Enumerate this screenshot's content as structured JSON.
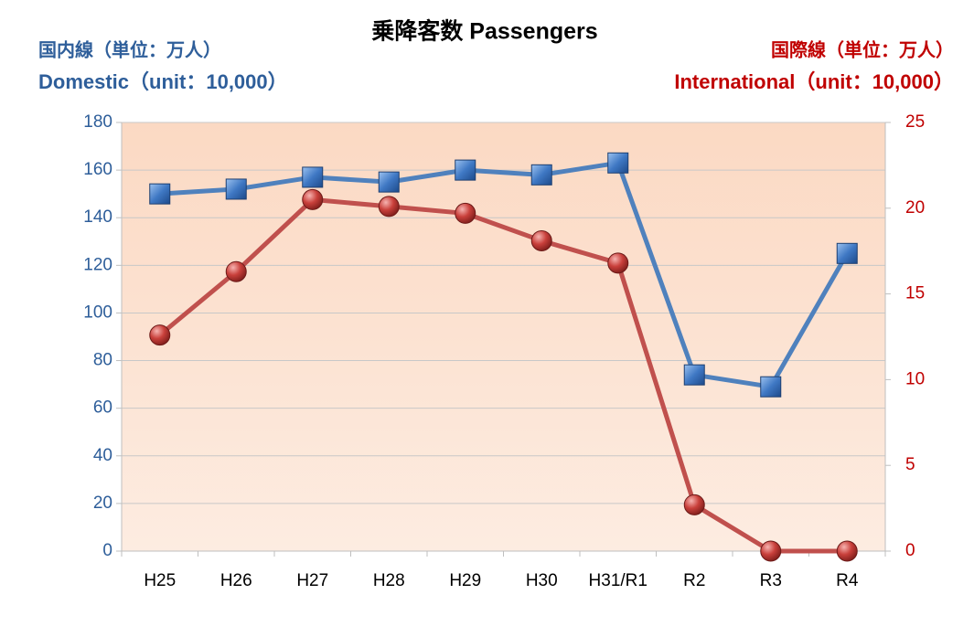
{
  "chart_data": {
    "type": "line",
    "title": "乗降客数  Passengers",
    "y_label": [
      "国内線（単位：万人）",
      "Domestic（unit：10,000）"
    ],
    "y2_label": [
      "国際線（単位：万人）",
      "International（unit：10,000）"
    ],
    "categories": [
      "H25",
      "H26",
      "H27",
      "H28",
      "H29",
      "H30",
      "H31/R1",
      "R2",
      "R3",
      "R4"
    ],
    "ylim": [
      0,
      180
    ],
    "yticks": [
      0,
      20,
      40,
      60,
      80,
      100,
      120,
      140,
      160,
      180
    ],
    "y2lim": [
      0,
      25
    ],
    "y2ticks": [
      0,
      5,
      10,
      15,
      20,
      25
    ],
    "grid": true,
    "series": [
      {
        "color": "#4f81bd",
        "marker": "square",
        "values": [
          150,
          152,
          157,
          155,
          160,
          158,
          163,
          74,
          69,
          125
        ]
      },
      {
        "color": "#c0504d",
        "marker": "circle",
        "axis": "y2",
        "values": [
          12.6,
          16.3,
          20.5,
          20.1,
          19.7,
          18.1,
          16.8,
          2.7,
          0,
          0
        ]
      }
    ]
  }
}
